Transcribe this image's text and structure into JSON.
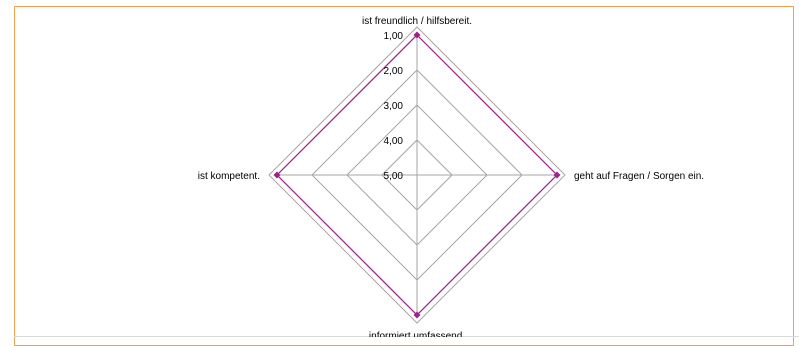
{
  "chart_data": {
    "type": "radar",
    "axes": [
      "ist freundlich / hilfsbereit.",
      "geht auf Fragen / Sorgen ein.",
      "informiert umfassend.",
      "ist kompetent."
    ],
    "tick_labels": [
      "1,00",
      "2,00",
      "3,00",
      "4,00",
      "5,00"
    ],
    "range": [
      1,
      5
    ],
    "reversed": true,
    "grid": true,
    "series": [
      {
        "values": [
          1.0,
          1.0,
          1.0,
          1.0
        ],
        "color": "#a0208c"
      }
    ],
    "colors": {
      "frame": "#f0a050",
      "grid": "#a6a6a6",
      "series": "#a0208c"
    }
  }
}
